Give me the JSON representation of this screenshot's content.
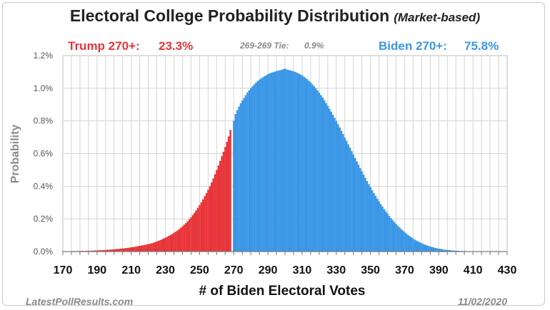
{
  "chart_data": {
    "type": "bar",
    "title": "Electoral College Probability Distribution",
    "title_note": "(Market-based)",
    "xlabel": "# of Biden Electoral Votes",
    "ylabel": "Probability",
    "xlim": [
      170,
      430
    ],
    "ylim": [
      0,
      1.2
    ],
    "x_ticks": [
      "170",
      "190",
      "210",
      "230",
      "250",
      "270",
      "290",
      "310",
      "330",
      "350",
      "370",
      "390",
      "410",
      "430"
    ],
    "y_ticks": [
      "0.0%",
      "0.2%",
      "0.4%",
      "0.6%",
      "0.8%",
      "1.0%",
      "1.2%"
    ],
    "grid": true,
    "split_at": 270,
    "colors": {
      "trump": "#e8353a",
      "biden": "#3a97e6"
    },
    "series": [
      {
        "name": "Trump 270+",
        "x_range": [
          170,
          268
        ],
        "values": [
          0.002,
          0.002,
          0.002,
          0.002,
          0.002,
          0.003,
          0.003,
          0.003,
          0.003,
          0.003,
          0.004,
          0.004,
          0.004,
          0.004,
          0.005,
          0.005,
          0.005,
          0.006,
          0.006,
          0.007,
          0.007,
          0.008,
          0.008,
          0.009,
          0.009,
          0.01,
          0.011,
          0.011,
          0.012,
          0.013,
          0.014,
          0.015,
          0.016,
          0.017,
          0.018,
          0.019,
          0.02,
          0.021,
          0.023,
          0.024,
          0.026,
          0.027,
          0.029,
          0.031,
          0.033,
          0.035,
          0.037,
          0.039,
          0.041,
          0.043,
          0.046,
          0.048,
          0.051,
          0.054,
          0.058,
          0.062,
          0.066,
          0.07,
          0.075,
          0.08,
          0.085,
          0.09,
          0.096,
          0.102,
          0.108,
          0.115,
          0.122,
          0.129,
          0.137,
          0.146,
          0.155,
          0.165,
          0.175,
          0.186,
          0.198,
          0.21,
          0.224,
          0.238,
          0.253,
          0.269,
          0.285,
          0.302,
          0.32,
          0.339,
          0.358,
          0.378,
          0.4,
          0.423,
          0.448,
          0.474,
          0.5,
          0.527,
          0.555,
          0.584,
          0.612,
          0.64,
          0.672,
          0.705,
          0.745
        ]
      },
      {
        "name": "Biden 270+",
        "x_range": [
          270,
          430
        ],
        "values": [
          0.801,
          0.842,
          0.866,
          0.887,
          0.908,
          0.925,
          0.941,
          0.958,
          0.974,
          0.988,
          1.0,
          1.013,
          1.024,
          1.035,
          1.044,
          1.052,
          1.06,
          1.067,
          1.074,
          1.08,
          1.086,
          1.091,
          1.095,
          1.098,
          1.102,
          1.105,
          1.108,
          1.11,
          1.113,
          1.117,
          1.12,
          1.115,
          1.112,
          1.11,
          1.107,
          1.104,
          1.1,
          1.095,
          1.09,
          1.085,
          1.078,
          1.071,
          1.063,
          1.055,
          1.045,
          1.035,
          1.024,
          1.012,
          1.0,
          0.987,
          0.973,
          0.958,
          0.943,
          0.927,
          0.91,
          0.893,
          0.875,
          0.857,
          0.838,
          0.819,
          0.8,
          0.78,
          0.76,
          0.74,
          0.719,
          0.698,
          0.678,
          0.657,
          0.636,
          0.615,
          0.594,
          0.573,
          0.552,
          0.532,
          0.511,
          0.491,
          0.471,
          0.451,
          0.432,
          0.413,
          0.395,
          0.376,
          0.358,
          0.341,
          0.324,
          0.307,
          0.291,
          0.276,
          0.26,
          0.246,
          0.232,
          0.218,
          0.205,
          0.193,
          0.181,
          0.169,
          0.158,
          0.148,
          0.138,
          0.128,
          0.119,
          0.11,
          0.102,
          0.094,
          0.087,
          0.08,
          0.073,
          0.067,
          0.061,
          0.056,
          0.051,
          0.046,
          0.042,
          0.038,
          0.034,
          0.031,
          0.028,
          0.025,
          0.022,
          0.02,
          0.018,
          0.016,
          0.014,
          0.012,
          0.011,
          0.01,
          0.009,
          0.008,
          0.007,
          0.006,
          0.005,
          0.005,
          0.004,
          0.004,
          0.003,
          0.003,
          0.003,
          0.002,
          0.002,
          0.002,
          0.002,
          0.002,
          0.001,
          0.001,
          0.001,
          0.001,
          0.001,
          0.001,
          0.001,
          0.001,
          0.001,
          0.001,
          0.001,
          0.001,
          0.001,
          0.001,
          0.001,
          0.001,
          0.001,
          0.001,
          0.001
        ]
      }
    ]
  },
  "stats": {
    "trump_label": "Trump 270+:",
    "trump_value": "23.3%",
    "tie_label": "269-269 Tie:",
    "tie_value": "0.9%",
    "biden_label": "Biden 270+:",
    "biden_value": "75.8%"
  },
  "footer": {
    "source": "LatestPollResults.com",
    "date": "11/02/2020"
  }
}
